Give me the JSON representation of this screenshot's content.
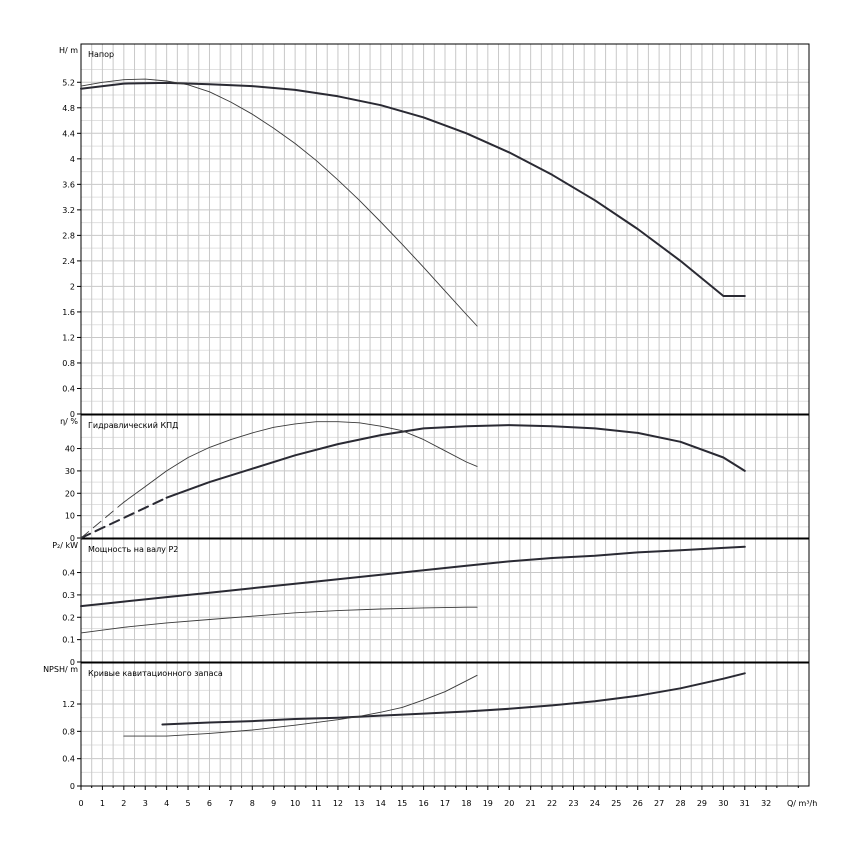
{
  "chart_data": {
    "type": "line",
    "x_axis": {
      "label": "Q/ m³/h",
      "range": [
        0,
        34
      ],
      "tick_labels": [
        "0",
        "1",
        "2",
        "3",
        "4",
        "5",
        "6",
        "7",
        "8",
        "9",
        "10",
        "11",
        "12",
        "13",
        "14",
        "15",
        "16",
        "17",
        "18",
        "19",
        "20",
        "21",
        "22",
        "23",
        "24",
        "25",
        "26",
        "27",
        "28",
        "29",
        "30",
        "31",
        "32"
      ]
    },
    "panels": [
      {
        "key": "head",
        "title": "Напор",
        "ylabel": "H/ m",
        "ylim": [
          0,
          5.8
        ],
        "tick_labels": [
          "0",
          "0.4",
          "0.8",
          "1.2",
          "1.6",
          "2",
          "2.4",
          "2.8",
          "3.2",
          "3.6",
          "4",
          "4.4",
          "4.8",
          "5.2"
        ],
        "series": [
          {
            "weight": "thick",
            "x": [
              0,
              2,
              4,
              6,
              8,
              10,
              12,
              14,
              16,
              18,
              20,
              22,
              24,
              26,
              28,
              30,
              31
            ],
            "y": [
              5.1,
              5.18,
              5.19,
              5.17,
              5.14,
              5.08,
              4.98,
              4.84,
              4.65,
              4.4,
              4.1,
              3.75,
              3.35,
              2.9,
              2.4,
              1.85,
              1.85
            ]
          },
          {
            "weight": "thin",
            "x": [
              0,
              1,
              2,
              3,
              4,
              5,
              6,
              7,
              8,
              9,
              10,
              11,
              12,
              13,
              14,
              15,
              16,
              17,
              18,
              18.5
            ],
            "y": [
              5.14,
              5.2,
              5.24,
              5.25,
              5.22,
              5.16,
              5.05,
              4.89,
              4.7,
              4.48,
              4.24,
              3.97,
              3.67,
              3.35,
              3.01,
              2.66,
              2.3,
              1.93,
              1.56,
              1.38
            ]
          }
        ]
      },
      {
        "key": "efficiency",
        "title": "Гидравлический КПД",
        "ylabel": "η/ %",
        "ylim": [
          0,
          55
        ],
        "tick_labels": [
          "0",
          "10",
          "20",
          "30",
          "40"
        ],
        "series": [
          {
            "weight": "thick",
            "x": [
              0,
              1,
              2,
              3,
              4,
              6,
              8,
              10,
              12,
              14,
              16,
              18,
              20,
              22,
              24,
              26,
              28,
              30,
              31
            ],
            "y": [
              0,
              4.5,
              9,
              13.5,
              18,
              25,
              31,
              37,
              42,
              46,
              49,
              50,
              50.5,
              50,
              49,
              47,
              43,
              36,
              30
            ]
          },
          {
            "weight": "thin",
            "x": [
              0,
              1,
              2,
              3,
              4,
              5,
              6,
              7,
              8,
              9,
              10,
              11,
              12,
              13,
              14,
              15,
              16,
              17,
              18,
              18.5
            ],
            "y": [
              0,
              8,
              16,
              23,
              30,
              36,
              40.5,
              44,
              47,
              49.5,
              51,
              52,
              52,
              51.5,
              50,
              48,
              44,
              39,
              34,
              32
            ]
          }
        ]
      },
      {
        "key": "power",
        "title": "Мощность на валу P2",
        "ylabel": "P₂/ kW",
        "ylim": [
          0,
          0.55
        ],
        "tick_labels": [
          "0",
          "0.1",
          "0.2",
          "0.3",
          "0.4"
        ],
        "series": [
          {
            "weight": "thick",
            "x": [
              0,
              2,
              4,
              6,
              8,
              10,
              12,
              14,
              16,
              18,
              20,
              22,
              24,
              26,
              28,
              30,
              31
            ],
            "y": [
              0.25,
              0.27,
              0.29,
              0.31,
              0.33,
              0.35,
              0.37,
              0.39,
              0.41,
              0.43,
              0.45,
              0.465,
              0.475,
              0.49,
              0.5,
              0.51,
              0.515
            ]
          },
          {
            "weight": "thin",
            "x": [
              0,
              2,
              4,
              6,
              8,
              10,
              12,
              14,
              16,
              18,
              18.5
            ],
            "y": [
              0.13,
              0.155,
              0.175,
              0.19,
              0.205,
              0.22,
              0.23,
              0.237,
              0.242,
              0.245,
              0.245
            ]
          }
        ]
      },
      {
        "key": "npsh",
        "title": "Кривые кавитационного запаса",
        "ylabel": "NPSH/ m",
        "ylim": [
          0,
          1.8
        ],
        "tick_labels": [
          "0",
          "0.4",
          "0.8",
          "1.2"
        ],
        "series": [
          {
            "weight": "thick",
            "x": [
              3.8,
              6,
              8,
              10,
              12,
              14,
              16,
              18,
              20,
              22,
              24,
              26,
              28,
              30,
              31
            ],
            "y": [
              0.9,
              0.93,
              0.95,
              0.98,
              1.0,
              1.03,
              1.06,
              1.09,
              1.13,
              1.18,
              1.24,
              1.32,
              1.43,
              1.57,
              1.65
            ]
          },
          {
            "weight": "thin",
            "x": [
              2,
              4,
              6,
              8,
              10,
              12,
              13,
              14,
              15,
              16,
              17,
              18,
              18.5
            ],
            "y": [
              0.73,
              0.73,
              0.77,
              0.82,
              0.89,
              0.97,
              1.02,
              1.08,
              1.15,
              1.26,
              1.38,
              1.54,
              1.62
            ]
          }
        ]
      }
    ]
  }
}
